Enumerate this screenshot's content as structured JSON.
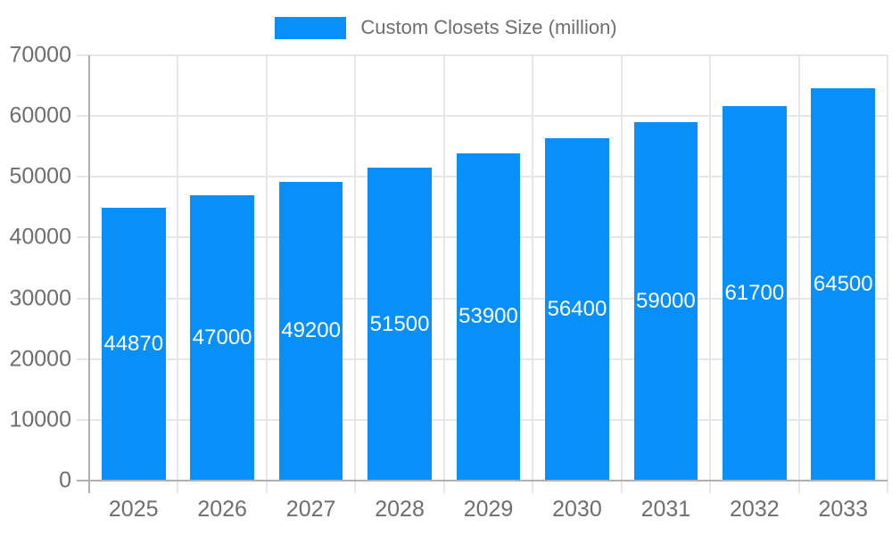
{
  "legend": {
    "label": "Custom Closets Size (million)"
  },
  "colors": {
    "bar": "#0890f8",
    "grid": "#e6e6e6",
    "axis": "#b0b0b0",
    "tick_text": "#6e6e6e",
    "bar_label_text": "#ffffff",
    "background": "#ffffff"
  },
  "chart_data": {
    "type": "bar",
    "title": "Custom Closets Size (million)",
    "series_name": "Custom Closets Size (million)",
    "categories": [
      "2025",
      "2026",
      "2027",
      "2028",
      "2029",
      "2030",
      "2031",
      "2032",
      "2033"
    ],
    "values": [
      44870,
      47000,
      49200,
      51500,
      53900,
      56400,
      59000,
      61700,
      64500
    ],
    "xlabel": "",
    "ylabel": "",
    "ylim": [
      0,
      70000
    ],
    "y_ticks": [
      0,
      10000,
      20000,
      30000,
      40000,
      50000,
      60000,
      70000
    ],
    "grid": true,
    "legend_position": "top-center",
    "data_labels": "inside-center-white"
  }
}
